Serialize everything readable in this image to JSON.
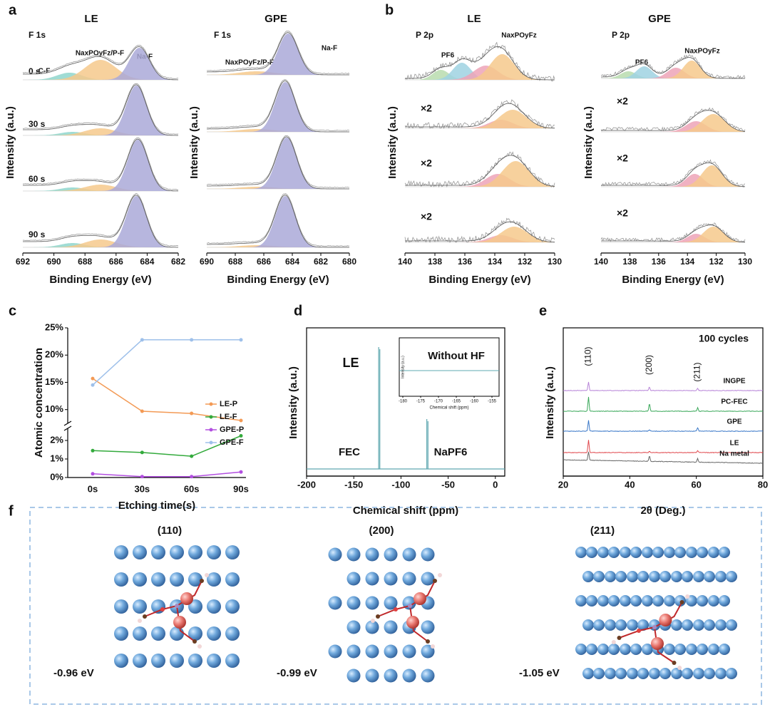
{
  "chart_data": [
    {
      "type": "xps",
      "panel": "a",
      "title": "LE",
      "core_level": "F 1s",
      "xlabel": "Binding Energy (eV)",
      "ylabel": "Intensity (a.u.)",
      "xlim": [
        692,
        682
      ],
      "xticks": [
        692,
        690,
        688,
        686,
        684,
        682
      ],
      "annotations": [
        "C-F",
        "NaxPOyFz/P-F",
        "Na-F"
      ],
      "rows": [
        "0 s",
        "30 s",
        "60 s",
        "90 s"
      ]
    },
    {
      "type": "xps",
      "title": "GPE",
      "core_level": "F 1s",
      "xlabel": "Binding Energy (eV)",
      "ylabel": "Intensity (a.u.)",
      "xlim": [
        690,
        680
      ],
      "xticks": [
        690,
        688,
        686,
        684,
        682,
        680
      ],
      "annotations": [
        "NaxPOyFz/P-F",
        "Na-F"
      ]
    },
    {
      "type": "xps",
      "panel": "b",
      "title": "LE",
      "core_level": "P 2p",
      "xlabel": "Binding Energy (eV)",
      "ylabel": "Intensity (a.u.)",
      "xlim": [
        140,
        130
      ],
      "xticks": [
        140,
        138,
        136,
        134,
        132,
        130
      ],
      "annotations": [
        "PF6",
        "NaxPOyFz"
      ],
      "scale_labels": [
        "×2",
        "×2",
        "×2"
      ]
    },
    {
      "type": "xps",
      "title": "GPE",
      "core_level": "P 2p",
      "xlabel": "Binding Energy (eV)",
      "ylabel": "Intensity (a.u.)",
      "xlim": [
        140,
        130
      ],
      "xticks": [
        140,
        138,
        136,
        134,
        132,
        130
      ],
      "annotations": [
        "PF6",
        "NaxPOyFz"
      ],
      "scale_labels": [
        "×2",
        "×2",
        "×2"
      ]
    },
    {
      "type": "line",
      "panel": "c",
      "xlabel": "Etching time(s)",
      "ylabel": "Atomic concentration",
      "categories": [
        "0s",
        "30s",
        "60s",
        "90s"
      ],
      "ylim": [
        0,
        25
      ],
      "axis_break": [
        2.5,
        8
      ],
      "yticks": [
        {
          "value": 0,
          "label": "0%"
        },
        {
          "value": 1,
          "label": "1%"
        },
        {
          "value": 2,
          "label": "2%"
        },
        {
          "value": 10,
          "label": "10%"
        },
        {
          "value": 15,
          "label": "15%"
        },
        {
          "value": 20,
          "label": "20%"
        },
        {
          "value": 25,
          "label": "25%"
        }
      ],
      "series": [
        {
          "name": "LE-P",
          "color": "#f39a55",
          "values": [
            15.7,
            9.7,
            9.3,
            8.0
          ]
        },
        {
          "name": "LE-F",
          "color": "#33aa3c",
          "values": [
            1.45,
            1.35,
            1.15,
            2.25
          ]
        },
        {
          "name": "GPE-P",
          "color": "#b24fe0",
          "values": [
            0.2,
            0.05,
            0.05,
            0.3
          ]
        },
        {
          "name": "GPE-F",
          "color": "#9ec0ea",
          "values": [
            14.5,
            22.8,
            22.8,
            22.8
          ]
        }
      ]
    },
    {
      "type": "nmr",
      "panel": "d",
      "label": "LE",
      "xlabel": "Chemical shift (ppm)",
      "ylabel": "Intensity (a.u.)",
      "xlim": [
        -200,
        10
      ],
      "xticks": [
        -200,
        -150,
        -100,
        -50,
        0
      ],
      "peaks": [
        -123,
        -72
      ],
      "peak_labels": [
        "FEC",
        "NaPF6"
      ],
      "color": "#5fa8b0",
      "inset": {
        "title": "Without HF",
        "xlabel": "Chemical shift (ppm)",
        "ylabel": "Intensity (a.u.)",
        "xlim": [
          -181,
          -153
        ],
        "xticks": [
          -180,
          -175,
          -170,
          -165,
          -160,
          -155
        ]
      }
    },
    {
      "type": "xrd",
      "panel": "e",
      "title": "100 cycles",
      "xlabel": "2θ (Deg.)",
      "ylabel": "Intensity (a.u.)",
      "xlim": [
        20,
        80
      ],
      "xticks": [
        20,
        40,
        60,
        80
      ],
      "peaks": [
        27.6,
        45.9,
        60.4
      ],
      "peak_labels": [
        "(110)",
        "(200)",
        "(211)"
      ],
      "series": [
        {
          "name": "INGPE",
          "color": "#b784d8"
        },
        {
          "name": "PC-FEC",
          "color": "#3aa85a"
        },
        {
          "name": "GPE",
          "color": "#3a78c8"
        },
        {
          "name": "LE",
          "color": "#e0474c"
        },
        {
          "name": "Na metal",
          "color": "#666666"
        }
      ]
    }
  ],
  "figure_f": {
    "panel": "f",
    "facets": [
      "(110)",
      "(200)",
      "(211)"
    ],
    "energies": [
      "-0.96 eV",
      "-0.99 eV",
      "-1.05 eV"
    ]
  }
}
